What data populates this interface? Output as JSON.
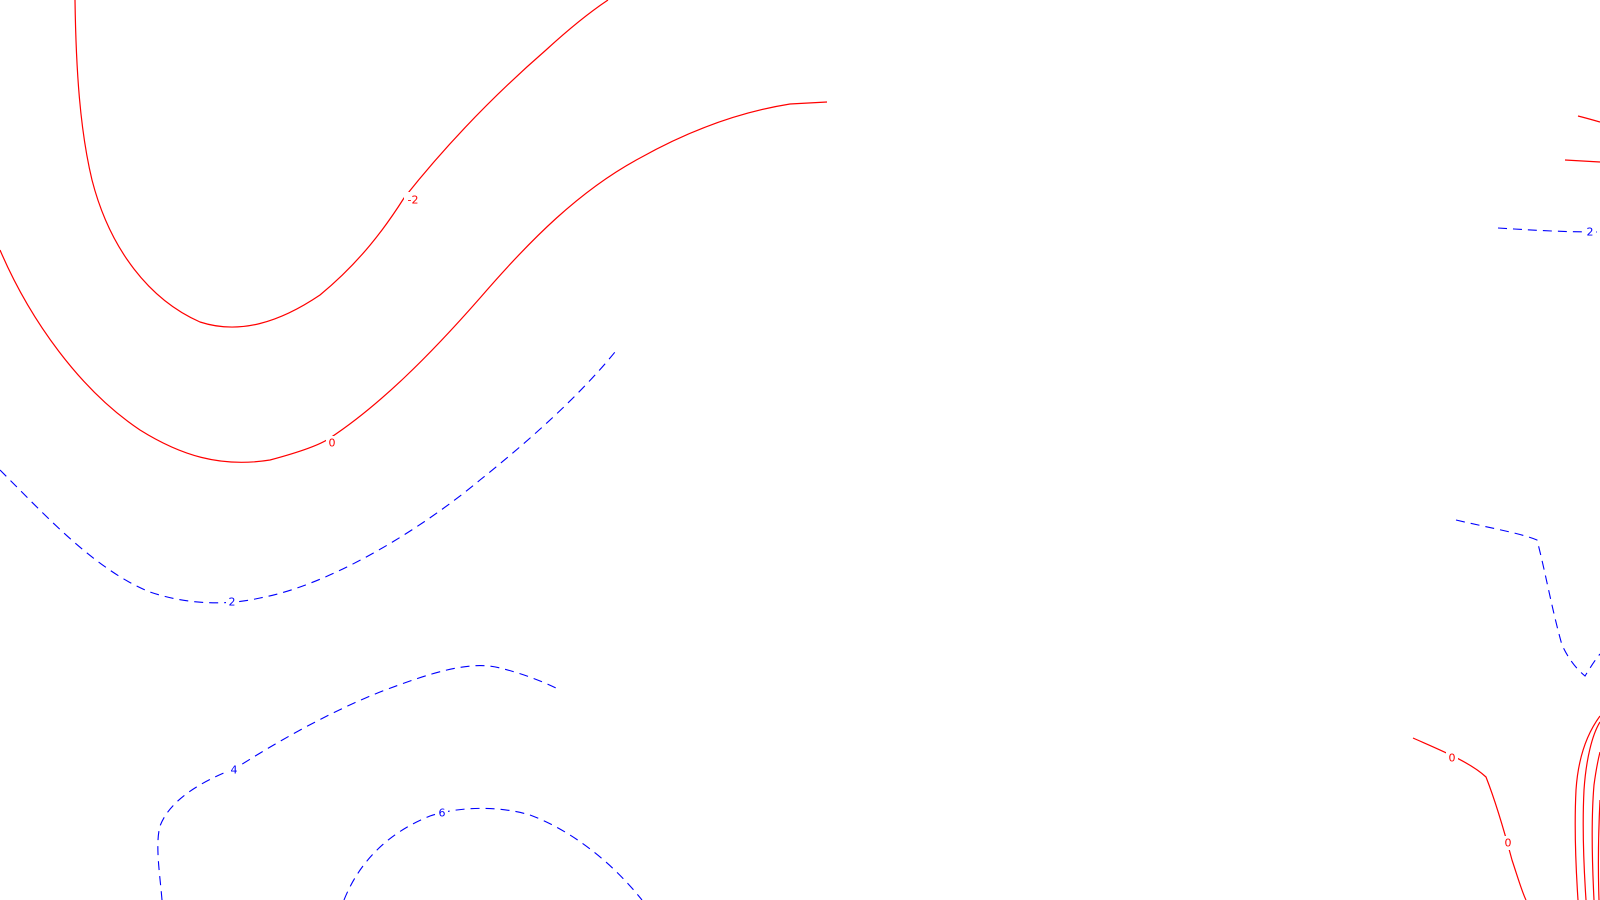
{
  "map": {
    "background": "#ffffff",
    "colors": {
      "negative_and_zero": "#ff0000",
      "positive": "#0000ff"
    },
    "contour_labels": [
      {
        "id": "label-neg2-upper-left",
        "text": "-2",
        "color": "#ff0000"
      },
      {
        "id": "label-0-left",
        "text": "0",
        "color": "#ff0000"
      },
      {
        "id": "label-2-left",
        "text": "2",
        "color": "#0000ff"
      },
      {
        "id": "label-4-left",
        "text": "4",
        "color": "#0000ff"
      },
      {
        "id": "label-6-left",
        "text": "6",
        "color": "#0000ff"
      },
      {
        "id": "label-2-right",
        "text": "2",
        "color": "#0000ff"
      },
      {
        "id": "label-0-right-a",
        "text": "0",
        "color": "#ff0000"
      },
      {
        "id": "label-0-right-b",
        "text": "0",
        "color": "#ff0000"
      }
    ]
  }
}
